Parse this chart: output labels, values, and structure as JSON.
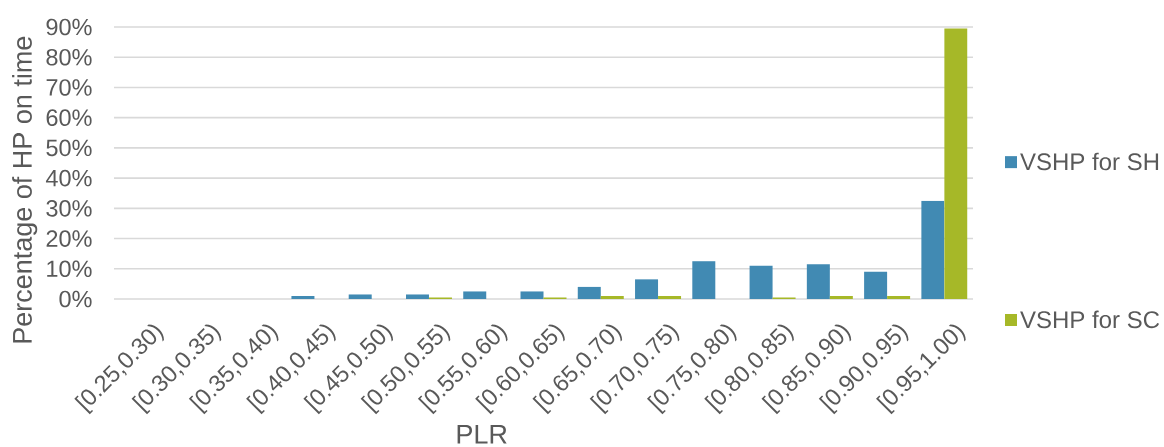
{
  "chart_data": {
    "type": "bar",
    "xlabel": "PLR",
    "ylabel": "Percentage of HP on time",
    "categories": [
      "[0.25,0.30)",
      "[0.30,0.35)",
      "[0.35,0.40)",
      "[0.40,0.45)",
      "[0.45,0.50)",
      "[0.50,0.55)",
      "[0.55,0.60)",
      "[0.60,0.65)",
      "[0.65,0.70)",
      "[0.70,0.75)",
      "[0.75,0.80)",
      "[0.80,0.85)",
      "[0.85,0.90)",
      "[0.90,0.95)",
      "[0.95,1.00)"
    ],
    "series": [
      {
        "name": "VSHP for SH",
        "color": "#418ab3",
        "values": [
          0,
          0,
          0,
          1,
          1.5,
          1.5,
          2.5,
          2.5,
          4,
          6.5,
          12.5,
          11,
          11.5,
          9,
          32.5
        ]
      },
      {
        "name": "VSHP for SC",
        "color": "#a6b828",
        "values": [
          0,
          0,
          0,
          0,
          0,
          0.5,
          0,
          0.5,
          1,
          1,
          0,
          0.5,
          1,
          1,
          89.5
        ]
      }
    ],
    "ylim": [
      0,
      90
    ],
    "yticks": [
      {
        "value": 0,
        "label": "0%"
      },
      {
        "value": 10,
        "label": "10%"
      },
      {
        "value": 20,
        "label": "20%"
      },
      {
        "value": 30,
        "label": "30%"
      },
      {
        "value": 40,
        "label": "40%"
      },
      {
        "value": 50,
        "label": "50%"
      },
      {
        "value": 60,
        "label": "60%"
      },
      {
        "value": 70,
        "label": "70%"
      },
      {
        "value": 80,
        "label": "80%"
      },
      {
        "value": 90,
        "label": "90%"
      }
    ],
    "grid": "y",
    "legend": "right"
  }
}
